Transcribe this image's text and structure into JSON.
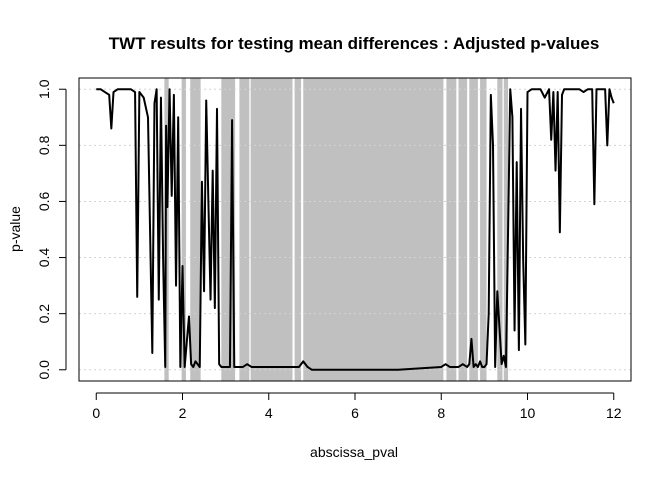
{
  "chart_data": {
    "type": "line",
    "title": "TWT results for testing mean differences : Adjusted p-values",
    "xlabel": "abscissa_pval",
    "ylabel": "p-value",
    "xlim": [
      -0.4,
      12.4
    ],
    "ylim": [
      -0.04,
      1.04
    ],
    "xticks": [
      0,
      2,
      4,
      6,
      8,
      10,
      12
    ],
    "yticks": [
      0.0,
      0.2,
      0.4,
      0.6,
      0.8,
      1.0
    ],
    "xtick_labels": [
      "0",
      "2",
      "4",
      "6",
      "8",
      "10",
      "12"
    ],
    "ytick_labels": [
      "0.0",
      "0.2",
      "0.4",
      "0.6",
      "0.8",
      "1.0"
    ],
    "grid": "horizontal dotted",
    "line_color": "#000000",
    "shade_color": "#c0c0c0",
    "significant_intervals": [
      [
        1.58,
        1.68
      ],
      [
        1.98,
        2.08
      ],
      [
        2.18,
        2.42
      ],
      [
        2.9,
        3.22
      ],
      [
        3.32,
        3.55
      ],
      [
        3.58,
        4.55
      ],
      [
        4.6,
        4.75
      ],
      [
        4.8,
        8.05
      ],
      [
        8.12,
        8.35
      ],
      [
        8.4,
        8.6
      ],
      [
        8.65,
        8.85
      ],
      [
        8.9,
        9.05
      ],
      [
        9.3,
        9.42
      ],
      [
        9.45,
        9.55
      ]
    ],
    "series": [
      {
        "x": [
          0,
          0.1,
          0.2,
          0.3,
          0.35,
          0.4,
          0.5,
          0.6,
          0.7,
          0.8,
          0.9,
          0.95,
          1.0,
          1.1,
          1.2,
          1.3,
          1.35,
          1.4,
          1.45,
          1.5,
          1.55,
          1.6,
          1.62,
          1.65,
          1.7,
          1.75,
          1.8,
          1.85,
          1.9,
          1.95,
          2.0,
          2.05,
          2.1,
          2.15,
          2.2,
          2.25,
          2.3,
          2.35,
          2.4,
          2.45,
          2.5,
          2.55,
          2.6,
          2.65,
          2.7,
          2.75,
          2.8,
          2.85,
          2.9,
          3.0,
          3.1,
          3.15,
          3.2,
          3.25,
          3.3,
          3.4,
          3.5,
          3.6,
          3.8,
          4.0,
          4.2,
          4.4,
          4.6,
          4.7,
          4.8,
          4.9,
          5.0,
          6.0,
          7.0,
          8.0,
          8.1,
          8.2,
          8.3,
          8.4,
          8.5,
          8.6,
          8.65,
          8.7,
          8.75,
          8.8,
          8.85,
          8.9,
          8.95,
          9.0,
          9.05,
          9.1,
          9.15,
          9.2,
          9.25,
          9.3,
          9.35,
          9.4,
          9.45,
          9.5,
          9.55,
          9.6,
          9.65,
          9.7,
          9.75,
          9.8,
          9.85,
          9.9,
          9.95,
          10.0,
          10.1,
          10.2,
          10.3,
          10.4,
          10.5,
          10.55,
          10.6,
          10.65,
          10.7,
          10.75,
          10.8,
          10.85,
          10.9,
          11.0,
          11.1,
          11.2,
          11.3,
          11.4,
          11.5,
          11.55,
          11.6,
          11.7,
          11.8,
          11.85,
          11.9,
          11.95,
          12.0
        ],
        "y": [
          1.0,
          1.0,
          0.99,
          0.98,
          0.86,
          0.99,
          1.0,
          1.0,
          1.0,
          1.0,
          0.99,
          0.26,
          0.99,
          0.97,
          0.9,
          0.06,
          0.95,
          1.0,
          0.25,
          0.97,
          0.4,
          0.01,
          0.87,
          0.58,
          1.0,
          0.62,
          0.98,
          0.3,
          0.9,
          0.01,
          0.37,
          0.01,
          0.1,
          0.19,
          0.02,
          0.01,
          0.03,
          0.02,
          0.01,
          0.67,
          0.28,
          0.96,
          0.6,
          0.25,
          0.71,
          0.22,
          0.93,
          0.02,
          0.01,
          0.01,
          0.01,
          0.89,
          0.01,
          0.01,
          0.01,
          0.01,
          0.02,
          0.01,
          0.01,
          0.01,
          0.01,
          0.01,
          0.01,
          0.01,
          0.03,
          0.01,
          0.0,
          0.0,
          0.0,
          0.01,
          0.02,
          0.01,
          0.01,
          0.01,
          0.02,
          0.01,
          0.02,
          0.11,
          0.01,
          0.02,
          0.01,
          0.03,
          0.01,
          0.01,
          0.02,
          0.2,
          0.98,
          0.8,
          0.01,
          0.28,
          0.15,
          0.02,
          0.05,
          0.01,
          0.5,
          1.0,
          0.9,
          0.14,
          0.74,
          0.07,
          0.93,
          0.39,
          0.09,
          0.99,
          1.0,
          1.0,
          1.0,
          0.97,
          1.0,
          0.82,
          0.99,
          0.71,
          0.99,
          0.49,
          0.98,
          1.0,
          1.0,
          1.0,
          1.0,
          1.0,
          0.99,
          1.0,
          1.0,
          0.59,
          1.0,
          1.0,
          1.0,
          0.8,
          1.0,
          0.97,
          0.95
        ]
      }
    ]
  }
}
